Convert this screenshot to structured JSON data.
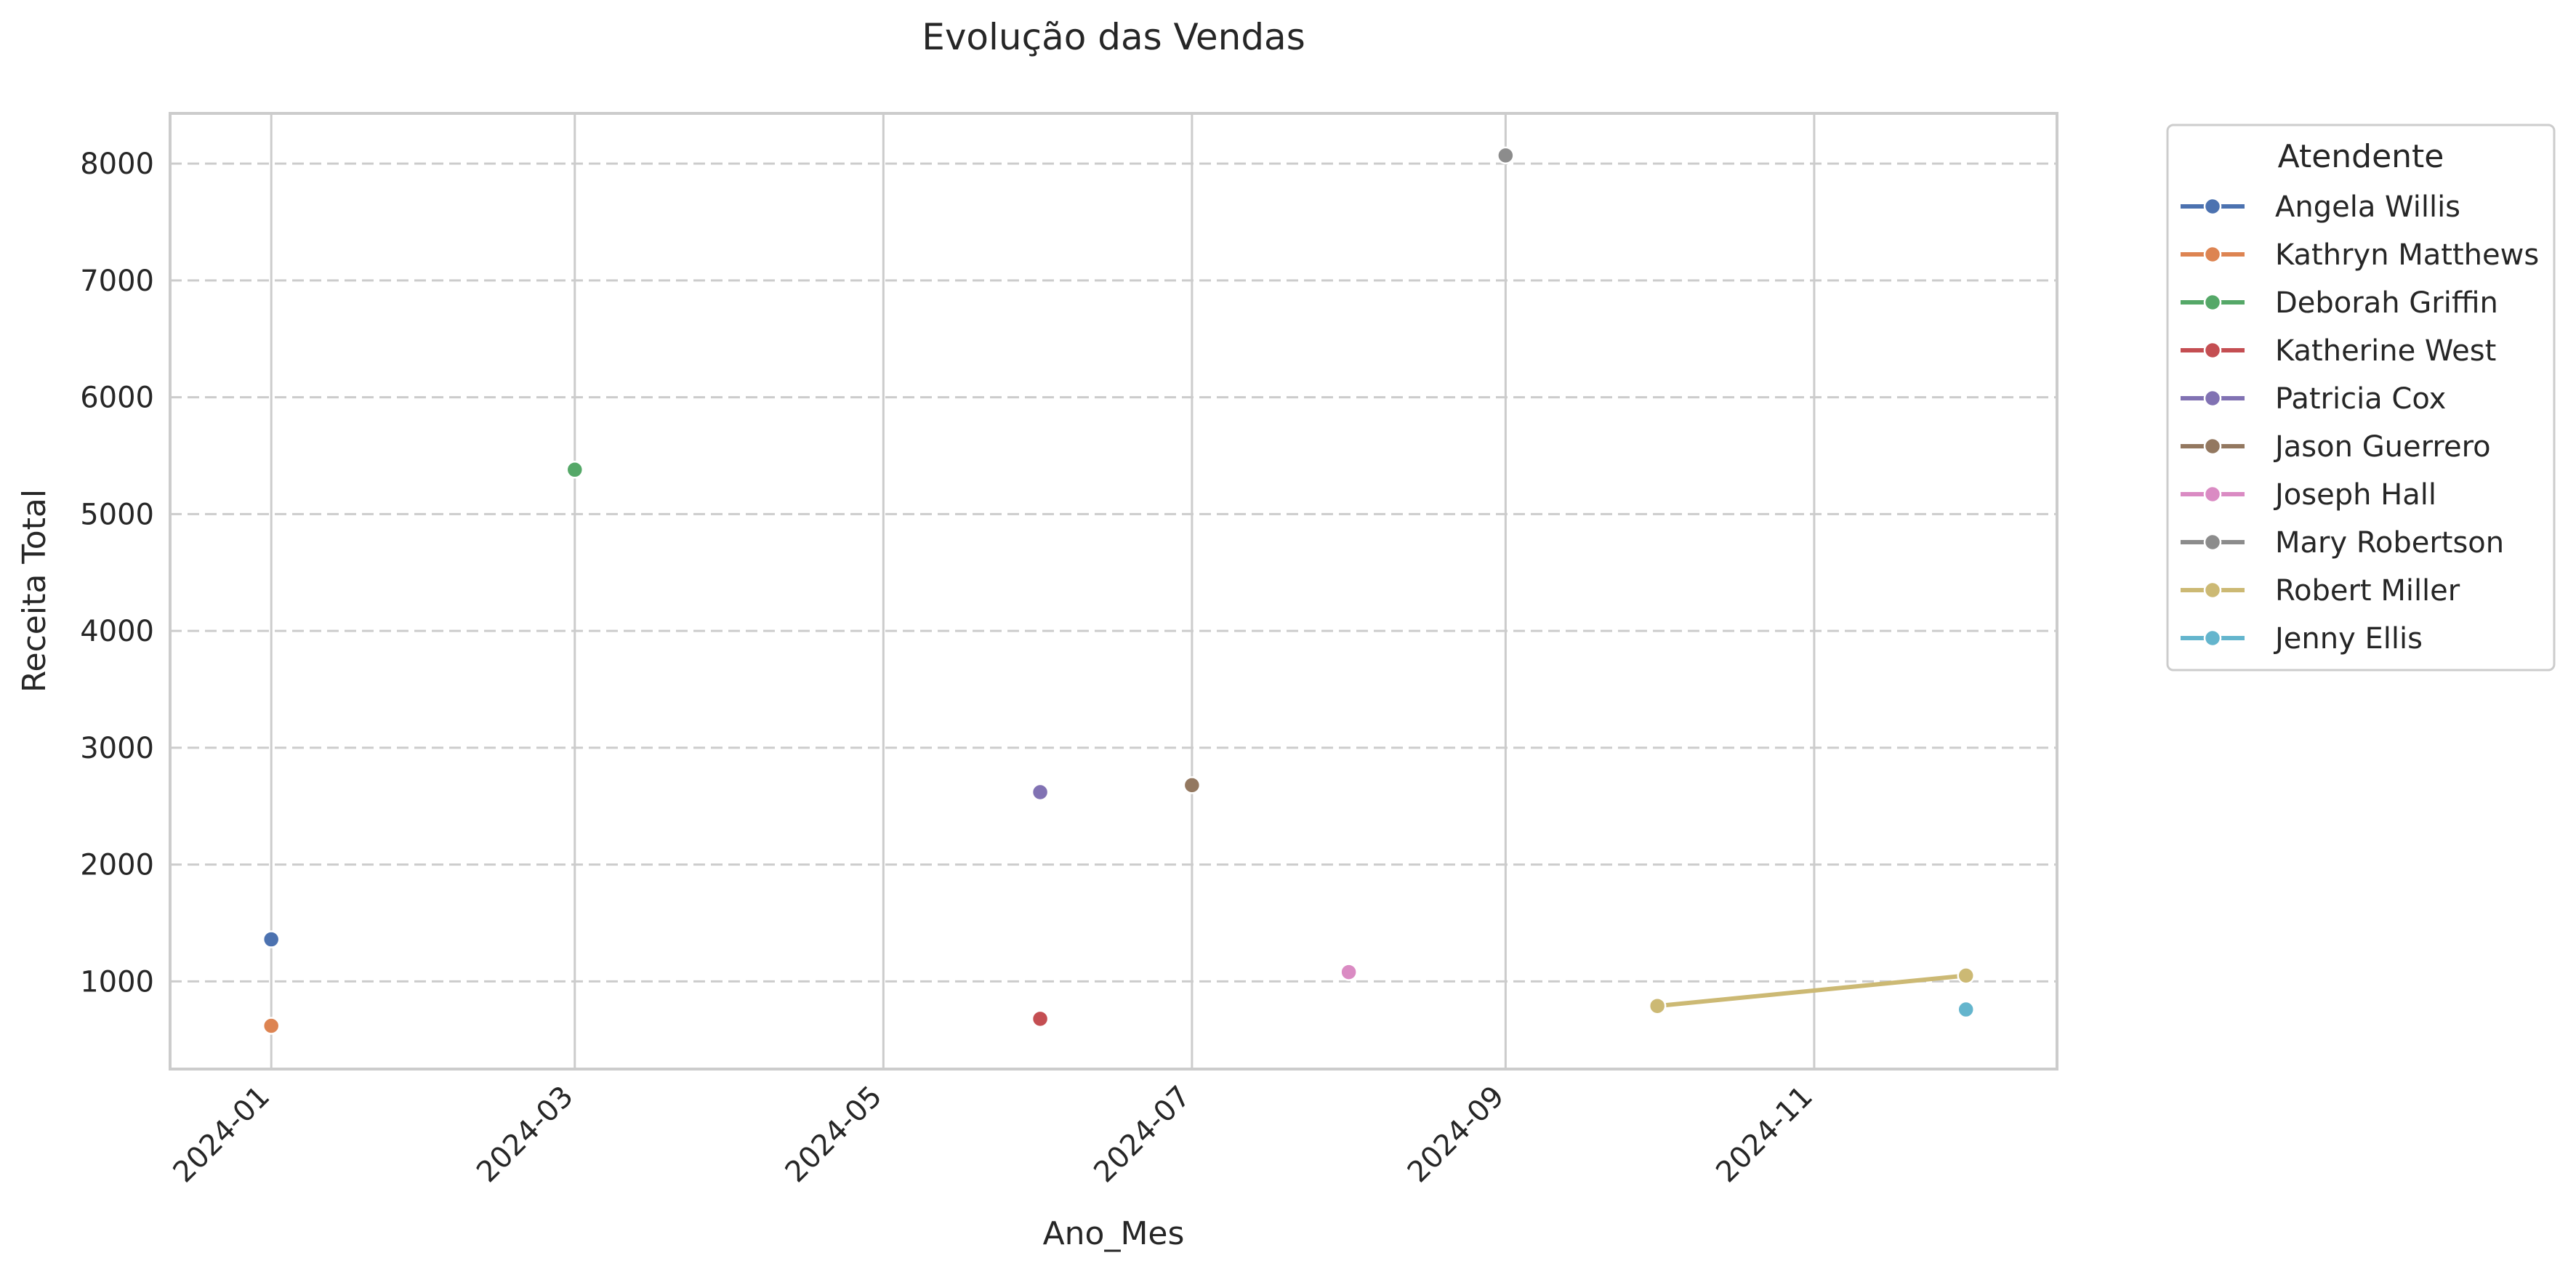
{
  "chart_data": {
    "type": "line",
    "title": "Evolução das Vendas",
    "xlabel": "Ano_Mes",
    "ylabel": "Receita Total",
    "x_ticks": [
      "2024-01",
      "2024-03",
      "2024-05",
      "2024-07",
      "2024-09",
      "2024-11"
    ],
    "y_ticks": [
      1000,
      2000,
      3000,
      4000,
      5000,
      6000,
      7000,
      8000
    ],
    "xlim": [
      "2023-12-12",
      "2024-12-19"
    ],
    "ylim": [
      250,
      8430
    ],
    "grid": {
      "x": "solid",
      "y": "dashed"
    },
    "legend": {
      "title": "Atendente",
      "placement": "outside-top-right"
    },
    "series": [
      {
        "name": "Angela Willis",
        "color": "#4c72b0",
        "points": [
          {
            "x": "2024-01-01",
            "y": 1360
          }
        ]
      },
      {
        "name": "Kathryn Matthews",
        "color": "#dd8452",
        "points": [
          {
            "x": "2024-01-01",
            "y": 620
          }
        ]
      },
      {
        "name": "Deborah Griffin",
        "color": "#55a868",
        "points": [
          {
            "x": "2024-03-01",
            "y": 5380
          }
        ]
      },
      {
        "name": "Katherine West",
        "color": "#c44e52",
        "points": [
          {
            "x": "2024-06-01",
            "y": 680
          }
        ]
      },
      {
        "name": "Patricia Cox",
        "color": "#8172b3",
        "points": [
          {
            "x": "2024-06-01",
            "y": 2620
          }
        ]
      },
      {
        "name": "Jason Guerrero",
        "color": "#937860",
        "points": [
          {
            "x": "2024-07-01",
            "y": 2680
          }
        ]
      },
      {
        "name": "Joseph Hall",
        "color": "#da8bc3",
        "points": [
          {
            "x": "2024-08-01",
            "y": 1080
          }
        ]
      },
      {
        "name": "Mary Robertson",
        "color": "#8c8c8c",
        "points": [
          {
            "x": "2024-09-01",
            "y": 8070
          }
        ]
      },
      {
        "name": "Robert Miller",
        "color": "#ccb974",
        "points": [
          {
            "x": "2024-10-01",
            "y": 790
          },
          {
            "x": "2024-12-01",
            "y": 1050
          }
        ]
      },
      {
        "name": "Jenny Ellis",
        "color": "#64b5cd",
        "points": [
          {
            "x": "2024-12-01",
            "y": 760
          }
        ]
      }
    ]
  }
}
